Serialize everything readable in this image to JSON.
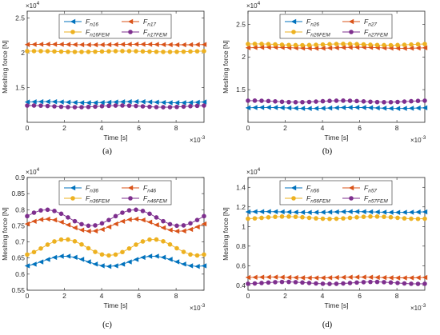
{
  "colors": {
    "blue": "#0072BD",
    "red": "#D95319",
    "yellow": "#EDB120",
    "purple": "#7E2F8E"
  },
  "chart_data": [
    {
      "type": "line",
      "panel_label": "(a)",
      "ylabel": "Meshing force [N]",
      "xlabel": "Time [s]",
      "y_exponent": "×10",
      "y_exponent_power": "4",
      "x_exponent": "×10",
      "x_exponent_power": "-3",
      "xlim": [
        0,
        0.0095
      ],
      "ylim": [
        1.0,
        2.6
      ],
      "xticks": [
        0,
        2,
        4,
        6,
        8
      ],
      "yticks": [
        "1.5",
        "2",
        "2.5"
      ],
      "ytick_values": [
        1.5,
        2.0,
        2.5
      ],
      "ytick_show_bottom": false,
      "legend": [
        {
          "base": "F",
          "sub": "n16",
          "color": "#0072BD",
          "marker": "triangle-left"
        },
        {
          "base": "F",
          "sub": "n17",
          "color": "#D95319",
          "marker": "triangle-left"
        },
        {
          "base": "F",
          "sub": "n16FEM",
          "color": "#EDB120",
          "marker": "circle"
        },
        {
          "base": "F",
          "sub": "n17FEM",
          "color": "#7E2F8E",
          "marker": "circle"
        }
      ],
      "series": [
        {
          "name": "Fn16",
          "color": "#0072BD",
          "marker": "triangle-left",
          "mean": 1.29,
          "amp": 0.008,
          "cycles": 2.0,
          "phase": 0.3
        },
        {
          "name": "Fn17",
          "color": "#D95319",
          "marker": "triangle-left",
          "mean": 2.12,
          "amp": 0.004,
          "cycles": 2.0,
          "phase": 0.0
        },
        {
          "name": "Fn16FEM",
          "color": "#EDB120",
          "marker": "circle",
          "mean": 2.02,
          "amp": 0.006,
          "cycles": 2.0,
          "phase": 1.0
        },
        {
          "name": "Fn17FEM",
          "color": "#7E2F8E",
          "marker": "circle",
          "mean": 1.23,
          "amp": 0.012,
          "cycles": 2.0,
          "phase": 1.2
        }
      ]
    },
    {
      "type": "line",
      "panel_label": "(b)",
      "ylabel": "Meshing force [N]",
      "xlabel": "Time [s]",
      "y_exponent": "×10",
      "y_exponent_power": "4",
      "x_exponent": "×10",
      "x_exponent_power": "-3",
      "xlim": [
        0,
        0.0095
      ],
      "ylim": [
        1.0,
        2.7
      ],
      "xticks": [
        0,
        2,
        4,
        6,
        8
      ],
      "yticks": [
        "1.5",
        "2",
        "2.5"
      ],
      "ytick_values": [
        1.5,
        2.0,
        2.5
      ],
      "legend": [
        {
          "base": "F",
          "sub": "n26",
          "color": "#0072BD",
          "marker": "triangle-left"
        },
        {
          "base": "F",
          "sub": "n27",
          "color": "#D95319",
          "marker": "triangle-left"
        },
        {
          "base": "F",
          "sub": "n26FEM",
          "color": "#EDB120",
          "marker": "circle"
        },
        {
          "base": "F",
          "sub": "n27FEM",
          "color": "#7E2F8E",
          "marker": "circle"
        }
      ],
      "series": [
        {
          "name": "Fn26",
          "color": "#0072BD",
          "marker": "triangle-left",
          "mean": 1.22,
          "amp": 0.008,
          "cycles": 2.0,
          "phase": 0.3
        },
        {
          "name": "Fn27",
          "color": "#D95319",
          "marker": "triangle-left",
          "mean": 2.14,
          "amp": 0.008,
          "cycles": 2.0,
          "phase": 0.0
        },
        {
          "name": "Fn26FEM",
          "color": "#EDB120",
          "marker": "circle",
          "mean": 2.19,
          "amp": 0.01,
          "cycles": 2.0,
          "phase": 1.0
        },
        {
          "name": "Fn27FEM",
          "color": "#7E2F8E",
          "marker": "circle",
          "mean": 1.32,
          "amp": 0.012,
          "cycles": 2.0,
          "phase": 1.2
        }
      ]
    },
    {
      "type": "line",
      "panel_label": "(c)",
      "ylabel": "Meshing force [N]",
      "xlabel": "Time [s]",
      "y_exponent": "×10",
      "y_exponent_power": "4",
      "x_exponent": "×10",
      "x_exponent_power": "-3",
      "xlim": [
        0,
        0.0095
      ],
      "ylim": [
        0.55,
        0.9
      ],
      "xticks": [
        0,
        2,
        4,
        6,
        8
      ],
      "yticks": [
        "0.55",
        "0.6",
        "0.65",
        "0.7",
        "0.75",
        "0.8",
        "0.85",
        "0.9"
      ],
      "ytick_values": [
        0.55,
        0.6,
        0.65,
        0.7,
        0.75,
        0.8,
        0.85,
        0.9
      ],
      "legend": [
        {
          "base": "F",
          "sub": "n36",
          "color": "#0072BD",
          "marker": "triangle-left"
        },
        {
          "base": "F",
          "sub": "n46",
          "color": "#D95319",
          "marker": "triangle-left"
        },
        {
          "base": "F",
          "sub": "n36FEM",
          "color": "#EDB120",
          "marker": "circle"
        },
        {
          "base": "F",
          "sub": "n46FEM",
          "color": "#7E2F8E",
          "marker": "circle"
        }
      ],
      "series": [
        {
          "name": "Fn36",
          "color": "#0072BD",
          "marker": "triangle-left",
          "mean": 0.64,
          "amp": 0.016,
          "cycles": 2.0,
          "phase": -1.1
        },
        {
          "name": "Fn46",
          "color": "#D95319",
          "marker": "triangle-left",
          "mean": 0.752,
          "amp": 0.019,
          "cycles": 2.0,
          "phase": 0.2
        },
        {
          "name": "Fn36FEM",
          "color": "#EDB120",
          "marker": "circle",
          "mean": 0.683,
          "amp": 0.025,
          "cycles": 2.0,
          "phase": -1.1
        },
        {
          "name": "Fn46FEM",
          "color": "#7E2F8E",
          "marker": "circle",
          "mean": 0.775,
          "amp": 0.025,
          "cycles": 2.0,
          "phase": 0.2
        }
      ]
    },
    {
      "type": "line",
      "panel_label": "(d)",
      "ylabel": "Meshing force [N]",
      "xlabel": "Time [s]",
      "y_exponent": "×10",
      "y_exponent_power": "4",
      "x_exponent": "×10",
      "x_exponent_power": "-3",
      "xlim": [
        0,
        0.0095
      ],
      "ylim": [
        0.35,
        1.5
      ],
      "xticks": [
        0,
        2,
        4,
        6,
        8
      ],
      "yticks": [
        "0.4",
        "0.6",
        "0.8",
        "1",
        "1.2",
        "1.4"
      ],
      "ytick_values": [
        0.4,
        0.6,
        0.8,
        1.0,
        1.2,
        1.4
      ],
      "legend": [
        {
          "base": "F",
          "sub": "n56",
          "color": "#0072BD",
          "marker": "triangle-left"
        },
        {
          "base": "F",
          "sub": "n57",
          "color": "#D95319",
          "marker": "triangle-left"
        },
        {
          "base": "F",
          "sub": "n56FEM",
          "color": "#EDB120",
          "marker": "circle"
        },
        {
          "base": "F",
          "sub": "n57FEM",
          "color": "#7E2F8E",
          "marker": "circle"
        }
      ],
      "series": [
        {
          "name": "Fn56",
          "color": "#0072BD",
          "marker": "triangle-left",
          "mean": 1.148,
          "amp": 0.004,
          "cycles": 2.0,
          "phase": 0.3
        },
        {
          "name": "Fn57",
          "color": "#D95319",
          "marker": "triangle-left",
          "mean": 0.48,
          "amp": 0.004,
          "cycles": 2.0,
          "phase": 0.0
        },
        {
          "name": "Fn56FEM",
          "color": "#EDB120",
          "marker": "circle",
          "mean": 1.09,
          "amp": 0.012,
          "cycles": 2.0,
          "phase": -1.1
        },
        {
          "name": "Fn57FEM",
          "color": "#7E2F8E",
          "marker": "circle",
          "mean": 0.425,
          "amp": 0.01,
          "cycles": 2.0,
          "phase": -1.1
        }
      ]
    }
  ]
}
